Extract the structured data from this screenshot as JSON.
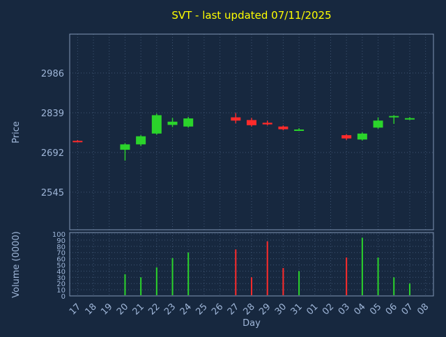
{
  "title": {
    "text": "SVT - last updated 07/11/2025"
  },
  "axes": {
    "price_label": "Price",
    "volume_label": "Volume (0000)",
    "x_label": "Day",
    "price_ticks": [
      2545,
      2692,
      2839,
      2986
    ],
    "volume_ticks": [
      0,
      10,
      20,
      30,
      40,
      50,
      60,
      70,
      80,
      90,
      100
    ],
    "x_ticks": [
      "17",
      "18",
      "19",
      "20",
      "21",
      "22",
      "23",
      "24",
      "25",
      "26",
      "27",
      "28",
      "29",
      "30",
      "31",
      "01",
      "02",
      "03",
      "04",
      "05",
      "06",
      "07",
      "08"
    ]
  },
  "colors": {
    "background": "#17283f",
    "title": "#ffff00",
    "axis_text": "#9fb6d8",
    "grid": "#3f5573",
    "border": "#8096b5",
    "up": "#2bd42b",
    "down": "#ff2b2b"
  },
  "chart_data": {
    "type": "candlestick",
    "title": "SVT - last updated 07/11/2025",
    "xlabel": "Day",
    "ylabel_price": "Price",
    "ylabel_volume": "Volume (0000)",
    "price_ylim": [
      2406,
      3130
    ],
    "volume_ylim": [
      0,
      100
    ],
    "x_categories": [
      "17",
      "18",
      "19",
      "20",
      "21",
      "22",
      "23",
      "24",
      "25",
      "26",
      "27",
      "28",
      "29",
      "30",
      "31",
      "01",
      "02",
      "03",
      "04",
      "05",
      "06",
      "07",
      "08"
    ],
    "candles": [
      {
        "day": "17",
        "open": 2735,
        "high": 2738,
        "low": 2730,
        "close": 2731,
        "direction": "down",
        "volume": 0
      },
      {
        "day": "20",
        "open": 2702,
        "high": 2726,
        "low": 2662,
        "close": 2722,
        "direction": "up",
        "volume": 35
      },
      {
        "day": "21",
        "open": 2722,
        "high": 2756,
        "low": 2716,
        "close": 2752,
        "direction": "up",
        "volume": 30
      },
      {
        "day": "22",
        "open": 2762,
        "high": 2836,
        "low": 2758,
        "close": 2830,
        "direction": "up",
        "volume": 46
      },
      {
        "day": "23",
        "open": 2794,
        "high": 2820,
        "low": 2786,
        "close": 2806,
        "direction": "up",
        "volume": 61
      },
      {
        "day": "24",
        "open": 2788,
        "high": 2824,
        "low": 2784,
        "close": 2818,
        "direction": "up",
        "volume": 70
      },
      {
        "day": "27",
        "open": 2822,
        "high": 2838,
        "low": 2800,
        "close": 2810,
        "direction": "down",
        "volume": 75
      },
      {
        "day": "28",
        "open": 2812,
        "high": 2820,
        "low": 2788,
        "close": 2793,
        "direction": "down",
        "volume": 30
      },
      {
        "day": "29",
        "open": 2802,
        "high": 2810,
        "low": 2792,
        "close": 2796,
        "direction": "down",
        "volume": 88
      },
      {
        "day": "30",
        "open": 2788,
        "high": 2792,
        "low": 2774,
        "close": 2778,
        "direction": "down",
        "volume": 45
      },
      {
        "day": "31",
        "open": 2776,
        "high": 2782,
        "low": 2772,
        "close": 2777,
        "direction": "up",
        "volume": 40
      },
      {
        "day": "03",
        "open": 2756,
        "high": 2760,
        "low": 2738,
        "close": 2744,
        "direction": "down",
        "volume": 62
      },
      {
        "day": "04",
        "open": 2740,
        "high": 2766,
        "low": 2736,
        "close": 2762,
        "direction": "up",
        "volume": 94
      },
      {
        "day": "05",
        "open": 2784,
        "high": 2822,
        "low": 2780,
        "close": 2810,
        "direction": "up",
        "volume": 62
      },
      {
        "day": "06",
        "open": 2824,
        "high": 2830,
        "low": 2798,
        "close": 2827,
        "direction": "up",
        "volume": 30
      },
      {
        "day": "07",
        "open": 2816,
        "high": 2823,
        "low": 2812,
        "close": 2819,
        "direction": "up",
        "volume": 20
      }
    ]
  }
}
